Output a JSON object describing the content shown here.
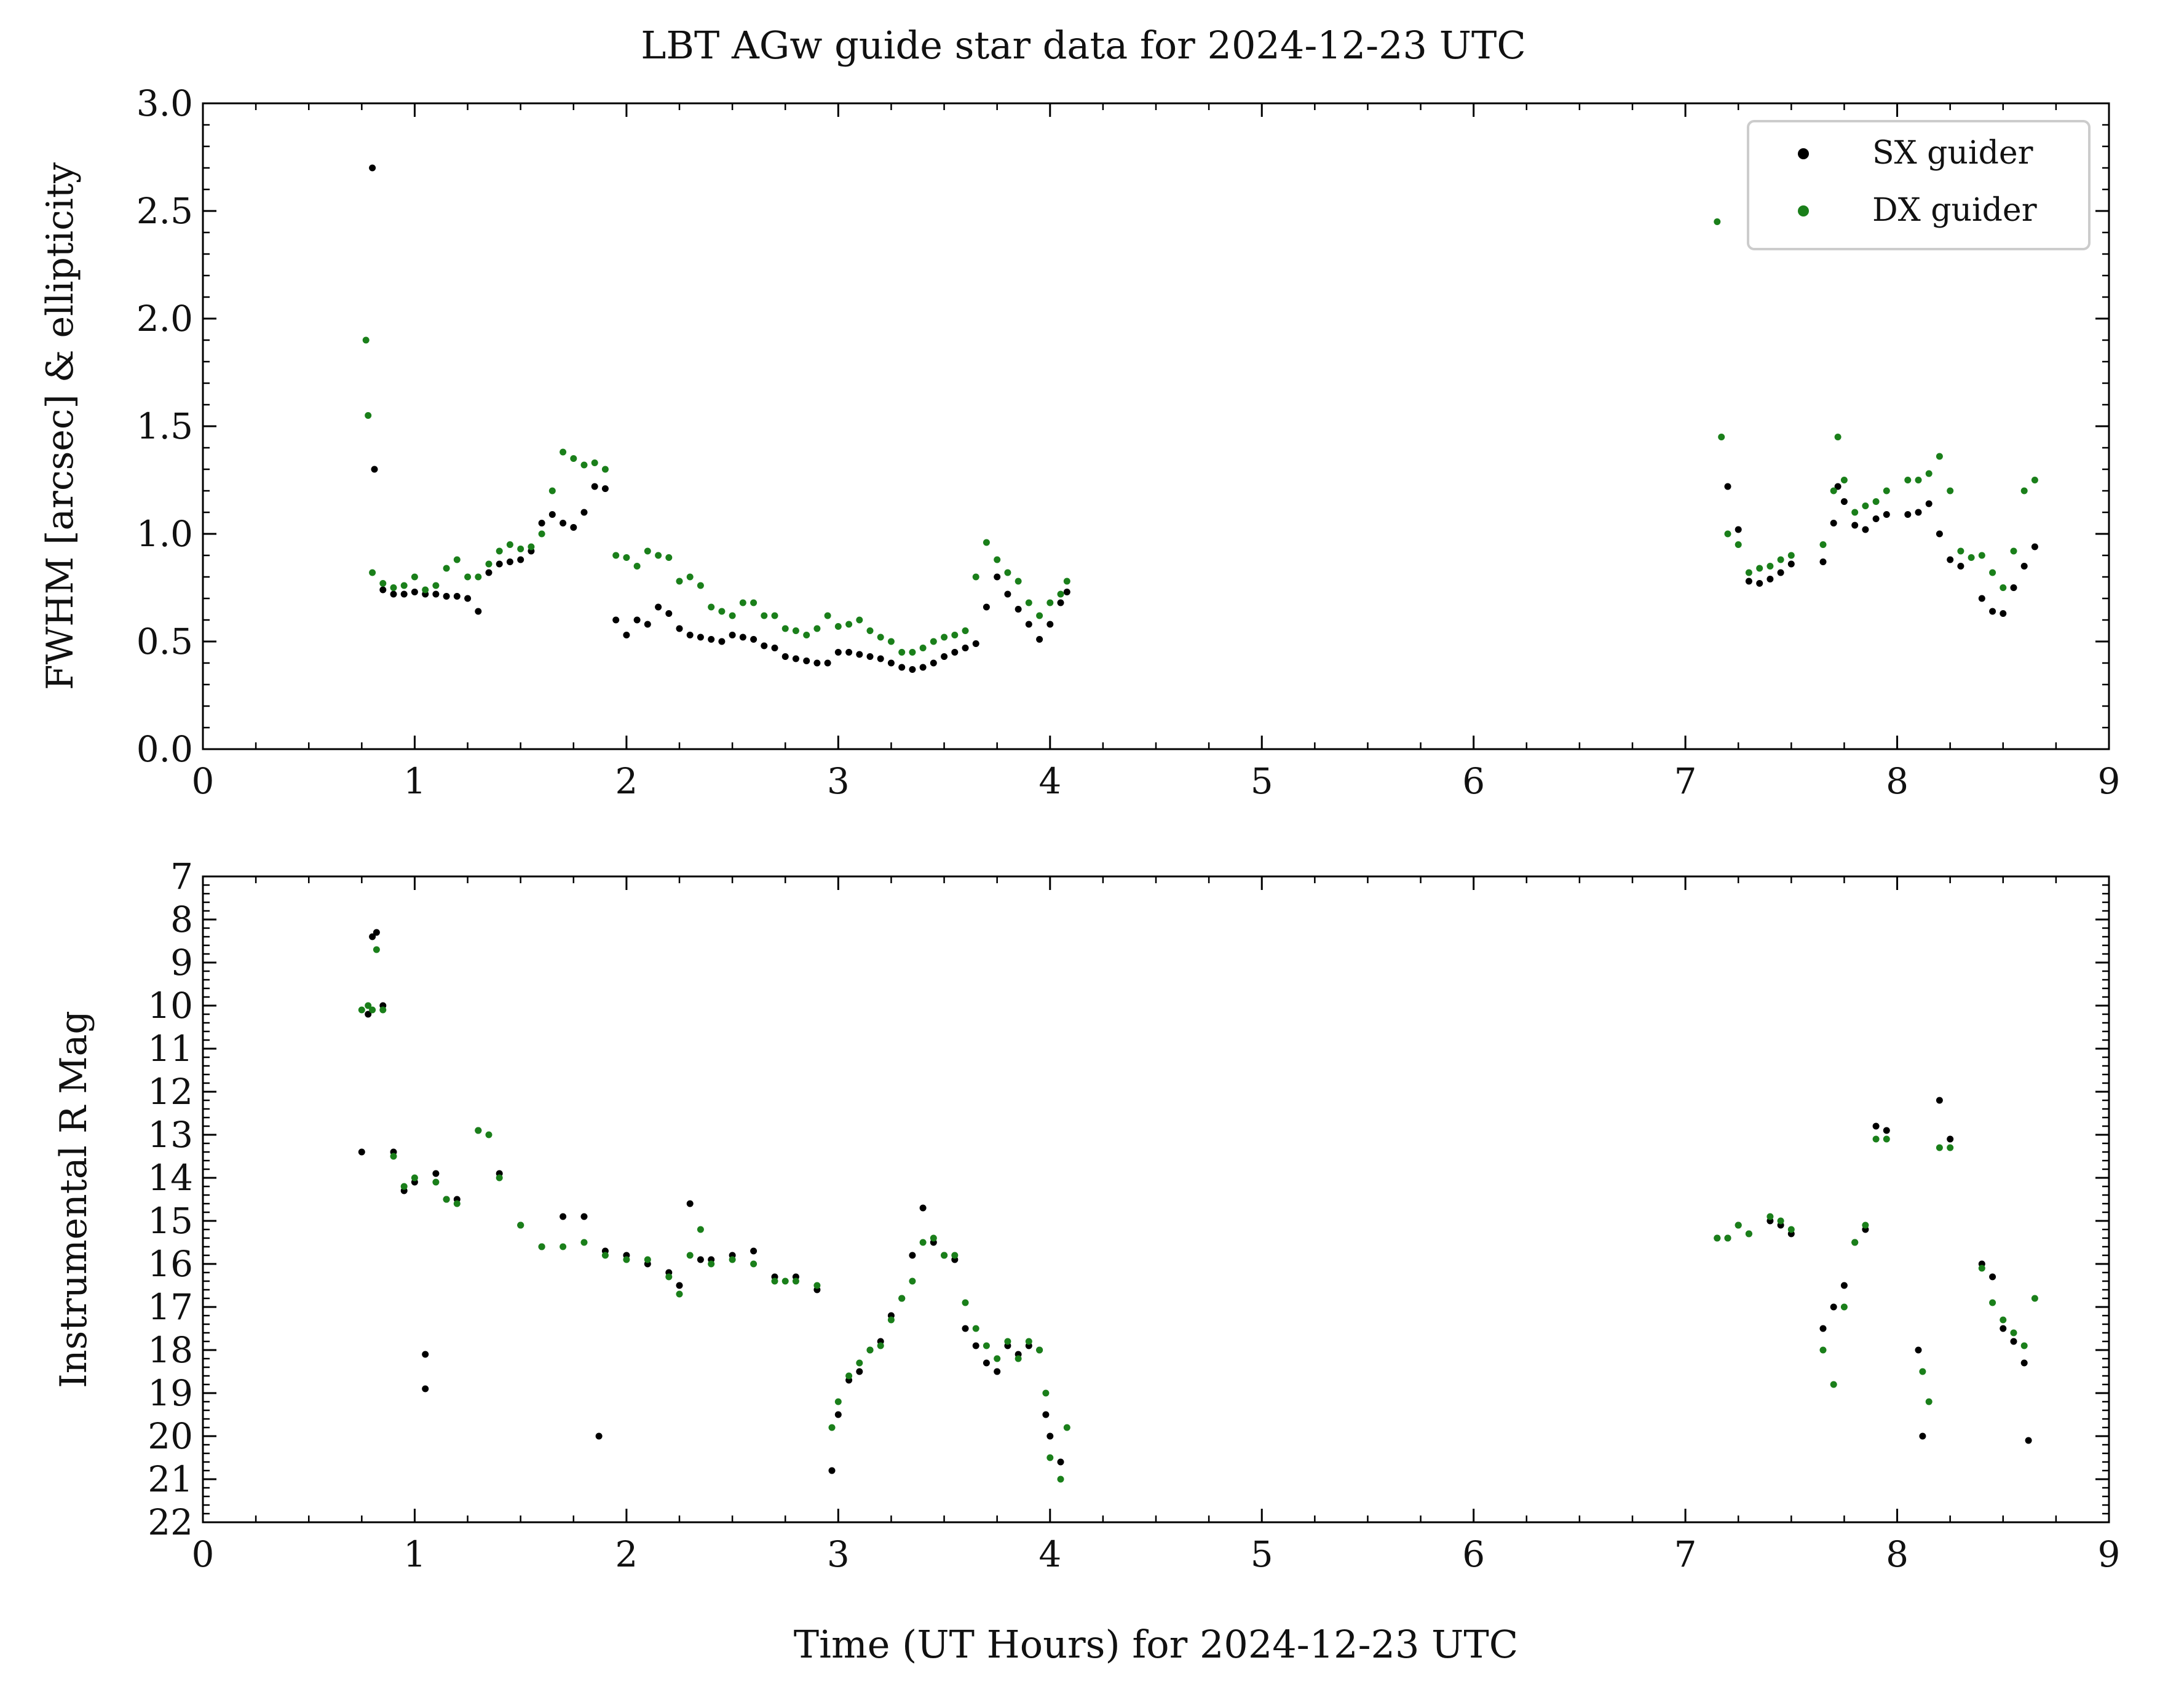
{
  "figure_title": "LBT AGw guide star data for 2024-12-23 UTC",
  "colors": {
    "sx": "#000000",
    "dx": "#1a7f1a",
    "axis": "#000000"
  },
  "legend": {
    "placement": "top-right",
    "entries": [
      "SX guider",
      "DX guider"
    ]
  },
  "chart_data": [
    {
      "type": "scatter",
      "panel": "top",
      "title": "LBT AGw guide star data for 2024-12-23 UTC",
      "xlabel": "",
      "ylabel": "FWHM [arcsec] & ellipticity",
      "xlim": [
        0,
        9
      ],
      "ylim": [
        0,
        3.0
      ],
      "xticks": [
        "0",
        "1",
        "2",
        "3",
        "4",
        "5",
        "6",
        "7",
        "8",
        "9"
      ],
      "yticks": [
        "0.0",
        "0.5",
        "1.0",
        "1.5",
        "2.0",
        "2.5",
        "3.0"
      ],
      "grid": false,
      "legend": "top-right",
      "series": [
        {
          "name": "SX guider",
          "x": [
            0.8,
            0.81,
            0.85,
            0.9,
            0.95,
            1.0,
            1.05,
            1.1,
            1.15,
            1.2,
            1.25,
            1.3,
            1.35,
            1.4,
            1.45,
            1.5,
            1.55,
            1.6,
            1.65,
            1.7,
            1.75,
            1.8,
            1.85,
            1.9,
            1.95,
            2.0,
            2.05,
            2.1,
            2.15,
            2.2,
            2.25,
            2.3,
            2.35,
            2.4,
            2.45,
            2.5,
            2.55,
            2.6,
            2.65,
            2.7,
            2.75,
            2.8,
            2.85,
            2.9,
            2.95,
            3.0,
            3.05,
            3.1,
            3.15,
            3.2,
            3.25,
            3.3,
            3.35,
            3.4,
            3.45,
            3.5,
            3.55,
            3.6,
            3.65,
            3.7,
            3.75,
            3.8,
            3.85,
            3.9,
            3.95,
            4.0,
            4.05,
            4.08,
            7.2,
            7.25,
            7.3,
            7.35,
            7.4,
            7.45,
            7.5,
            7.65,
            7.7,
            7.72,
            7.75,
            7.8,
            7.85,
            7.9,
            7.95,
            8.05,
            8.1,
            8.15,
            8.2,
            8.25,
            8.3,
            8.4,
            8.45,
            8.5,
            8.55,
            8.6,
            8.65
          ],
          "y": [
            2.7,
            1.3,
            0.74,
            0.72,
            0.72,
            0.73,
            0.72,
            0.72,
            0.71,
            0.71,
            0.7,
            0.64,
            0.82,
            0.86,
            0.87,
            0.88,
            0.92,
            1.05,
            1.09,
            1.05,
            1.03,
            1.1,
            1.22,
            1.21,
            0.6,
            0.53,
            0.6,
            0.58,
            0.66,
            0.63,
            0.56,
            0.53,
            0.52,
            0.51,
            0.5,
            0.53,
            0.52,
            0.51,
            0.48,
            0.47,
            0.43,
            0.42,
            0.41,
            0.4,
            0.4,
            0.45,
            0.45,
            0.44,
            0.43,
            0.42,
            0.4,
            0.38,
            0.37,
            0.38,
            0.4,
            0.43,
            0.45,
            0.47,
            0.49,
            0.66,
            0.8,
            0.72,
            0.65,
            0.58,
            0.51,
            0.58,
            0.68,
            0.73,
            1.22,
            1.02,
            0.78,
            0.77,
            0.79,
            0.82,
            0.86,
            0.87,
            1.05,
            1.22,
            1.15,
            1.04,
            1.02,
            1.07,
            1.09,
            1.09,
            1.1,
            1.14,
            1.0,
            0.88,
            0.85,
            0.7,
            0.64,
            0.63,
            0.75,
            0.85,
            0.94
          ]
        },
        {
          "name": "DX guider",
          "x": [
            0.77,
            0.78,
            0.8,
            0.85,
            0.9,
            0.95,
            1.0,
            1.05,
            1.1,
            1.15,
            1.2,
            1.25,
            1.3,
            1.35,
            1.4,
            1.45,
            1.5,
            1.55,
            1.6,
            1.65,
            1.7,
            1.75,
            1.8,
            1.85,
            1.9,
            1.95,
            2.0,
            2.05,
            2.1,
            2.15,
            2.2,
            2.25,
            2.3,
            2.35,
            2.4,
            2.45,
            2.5,
            2.55,
            2.6,
            2.65,
            2.7,
            2.75,
            2.8,
            2.85,
            2.9,
            2.95,
            3.0,
            3.05,
            3.1,
            3.15,
            3.2,
            3.25,
            3.3,
            3.35,
            3.4,
            3.45,
            3.5,
            3.55,
            3.6,
            3.65,
            3.7,
            3.75,
            3.8,
            3.85,
            3.9,
            3.95,
            4.0,
            4.05,
            4.08,
            7.15,
            7.17,
            7.2,
            7.25,
            7.3,
            7.35,
            7.4,
            7.45,
            7.5,
            7.65,
            7.7,
            7.72,
            7.75,
            7.8,
            7.85,
            7.9,
            7.95,
            8.05,
            8.1,
            8.15,
            8.2,
            8.25,
            8.3,
            8.35,
            8.4,
            8.45,
            8.5,
            8.55,
            8.6,
            8.65
          ],
          "y": [
            1.9,
            1.55,
            0.82,
            0.77,
            0.75,
            0.76,
            0.8,
            0.74,
            0.76,
            0.84,
            0.88,
            0.8,
            0.8,
            0.86,
            0.92,
            0.95,
            0.93,
            0.94,
            1.0,
            1.2,
            1.38,
            1.35,
            1.32,
            1.33,
            1.3,
            0.9,
            0.89,
            0.85,
            0.92,
            0.9,
            0.89,
            0.78,
            0.8,
            0.76,
            0.66,
            0.64,
            0.62,
            0.68,
            0.68,
            0.62,
            0.62,
            0.56,
            0.55,
            0.53,
            0.56,
            0.62,
            0.57,
            0.58,
            0.6,
            0.55,
            0.52,
            0.5,
            0.45,
            0.45,
            0.47,
            0.5,
            0.52,
            0.53,
            0.55,
            0.8,
            0.96,
            0.88,
            0.82,
            0.78,
            0.68,
            0.62,
            0.68,
            0.72,
            0.78,
            2.45,
            1.45,
            1.0,
            0.95,
            0.82,
            0.84,
            0.85,
            0.88,
            0.9,
            0.95,
            1.2,
            1.45,
            1.25,
            1.1,
            1.13,
            1.15,
            1.2,
            1.25,
            1.25,
            1.28,
            1.36,
            1.2,
            0.92,
            0.89,
            0.9,
            0.82,
            0.75,
            0.92,
            1.2,
            1.25
          ]
        }
      ]
    },
    {
      "type": "scatter",
      "panel": "bottom",
      "title": "",
      "xlabel": "Time (UT Hours) for 2024-12-23 UTC",
      "ylabel": "Instrumental R Mag",
      "xlim": [
        0,
        9
      ],
      "ylim": [
        22,
        7
      ],
      "y_inverted": true,
      "xticks": [
        "0",
        "1",
        "2",
        "3",
        "4",
        "5",
        "6",
        "7",
        "8",
        "9"
      ],
      "yticks": [
        "7",
        "8",
        "9",
        "10",
        "11",
        "12",
        "13",
        "14",
        "15",
        "16",
        "17",
        "18",
        "19",
        "20",
        "21",
        "22"
      ],
      "grid": false,
      "series": [
        {
          "name": "SX guider",
          "x": [
            0.75,
            0.78,
            0.8,
            0.82,
            0.85,
            0.9,
            0.95,
            1.0,
            1.05,
            1.05,
            1.1,
            1.15,
            1.2,
            1.3,
            1.4,
            1.5,
            1.6,
            1.7,
            1.8,
            1.87,
            1.9,
            2.0,
            2.1,
            2.2,
            2.25,
            2.3,
            2.35,
            2.4,
            2.5,
            2.6,
            2.7,
            2.8,
            2.9,
            2.97,
            3.0,
            3.05,
            3.1,
            3.15,
            3.2,
            3.25,
            3.3,
            3.35,
            3.4,
            3.45,
            3.5,
            3.55,
            3.6,
            3.65,
            3.7,
            3.75,
            3.8,
            3.85,
            3.9,
            3.95,
            3.98,
            4.0,
            4.05,
            7.15,
            7.2,
            7.25,
            7.3,
            7.4,
            7.45,
            7.5,
            7.65,
            7.7,
            7.75,
            7.8,
            7.85,
            7.9,
            7.95,
            8.1,
            8.12,
            8.2,
            8.25,
            8.4,
            8.45,
            8.5,
            8.55,
            8.6,
            8.62
          ],
          "y": [
            13.4,
            10.2,
            8.4,
            8.3,
            10.0,
            13.4,
            14.3,
            14.1,
            18.1,
            18.9,
            13.9,
            14.5,
            14.5,
            12.9,
            13.9,
            15.1,
            15.6,
            14.9,
            14.9,
            20.0,
            15.7,
            15.8,
            16.0,
            16.2,
            16.5,
            14.6,
            15.9,
            15.9,
            15.8,
            15.7,
            16.3,
            16.3,
            16.6,
            20.8,
            19.5,
            18.7,
            18.5,
            18.0,
            17.8,
            17.2,
            16.8,
            15.8,
            14.7,
            15.5,
            15.8,
            15.9,
            17.5,
            17.9,
            18.3,
            18.5,
            17.9,
            18.1,
            17.9,
            18.0,
            19.5,
            20.0,
            20.6,
            15.4,
            15.4,
            15.1,
            15.3,
            15.0,
            15.1,
            15.3,
            17.5,
            17.0,
            16.5,
            15.5,
            15.2,
            12.8,
            12.9,
            18.0,
            20.0,
            12.2,
            13.1,
            16.0,
            16.3,
            17.5,
            17.8,
            18.3,
            20.1
          ]
        },
        {
          "name": "DX guider",
          "x": [
            0.75,
            0.78,
            0.8,
            0.82,
            0.85,
            0.9,
            0.95,
            1.0,
            1.1,
            1.15,
            1.2,
            1.3,
            1.35,
            1.4,
            1.5,
            1.6,
            1.7,
            1.8,
            1.9,
            2.0,
            2.1,
            2.2,
            2.25,
            2.3,
            2.35,
            2.4,
            2.5,
            2.6,
            2.7,
            2.75,
            2.8,
            2.9,
            2.97,
            3.0,
            3.05,
            3.1,
            3.15,
            3.2,
            3.25,
            3.3,
            3.35,
            3.4,
            3.45,
            3.5,
            3.55,
            3.6,
            3.65,
            3.7,
            3.75,
            3.8,
            3.85,
            3.9,
            3.95,
            3.98,
            4.0,
            4.05,
            4.08,
            7.15,
            7.2,
            7.25,
            7.3,
            7.4,
            7.45,
            7.5,
            7.65,
            7.7,
            7.75,
            7.8,
            7.85,
            7.9,
            7.95,
            8.12,
            8.15,
            8.2,
            8.25,
            8.4,
            8.45,
            8.5,
            8.55,
            8.6,
            8.65
          ],
          "y": [
            10.1,
            10.0,
            10.1,
            8.7,
            10.1,
            13.5,
            14.2,
            14.0,
            14.1,
            14.5,
            14.6,
            12.9,
            13.0,
            14.0,
            15.1,
            15.6,
            15.6,
            15.5,
            15.8,
            15.9,
            15.9,
            16.3,
            16.7,
            15.8,
            15.2,
            16.0,
            15.9,
            16.0,
            16.4,
            16.4,
            16.4,
            16.5,
            19.8,
            19.2,
            18.6,
            18.3,
            18.0,
            17.9,
            17.3,
            16.8,
            16.4,
            15.5,
            15.4,
            15.8,
            15.8,
            16.9,
            17.5,
            17.9,
            18.2,
            17.8,
            18.2,
            17.8,
            18.0,
            19.0,
            20.5,
            21.0,
            19.8,
            15.4,
            15.4,
            15.1,
            15.3,
            14.9,
            15.0,
            15.2,
            18.0,
            18.8,
            17.0,
            15.5,
            15.1,
            13.1,
            13.1,
            18.5,
            19.2,
            13.3,
            13.3,
            16.1,
            16.9,
            17.3,
            17.6,
            17.9,
            16.8
          ]
        }
      ]
    }
  ]
}
